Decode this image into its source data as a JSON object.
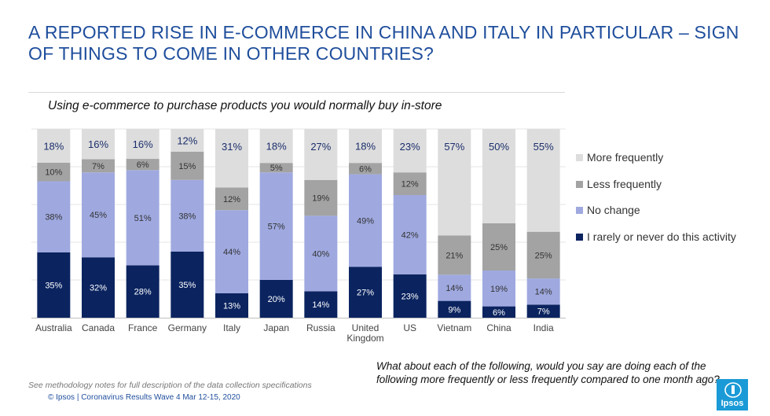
{
  "title": "A REPORTED RISE IN E-COMMERCE IN CHINA AND ITALY IN PARTICULAR – SIGN OF THINGS TO COME IN OTHER COUNTRIES?",
  "footer": {
    "note": "See methodology notes for full description of the data collection specifications",
    "source": "© Ipsos | Coronavirus Results Wave 4 Mar 12-15, 2020",
    "question": "What about each of the following, would you say are doing each of the following more frequently or less frequently compared to one month ago?",
    "logo_text": "Ipsos"
  },
  "colors": {
    "never": "#0b2460",
    "no_change": "#9fa9e0",
    "less": "#a3a3a3",
    "more": "#dddddd",
    "title": "#1f4e9c",
    "logo": "#1a9ad6"
  },
  "chart_data": {
    "type": "bar",
    "stacked": true,
    "title": "Using e-commerce to purchase products you would normally buy in-store",
    "categories": [
      "Australia",
      "Canada",
      "France",
      "Germany",
      "Italy",
      "Japan",
      "Russia",
      "United Kingdom",
      "US",
      "Vietnam",
      "China",
      "India"
    ],
    "category_lines": [
      [
        "Australia"
      ],
      [
        "Canada"
      ],
      [
        "France"
      ],
      [
        "Germany"
      ],
      [
        "Italy"
      ],
      [
        "Japan"
      ],
      [
        "Russia"
      ],
      [
        "United",
        "Kingdom"
      ],
      [
        "US"
      ],
      [
        "Vietnam"
      ],
      [
        "China"
      ],
      [
        "India"
      ]
    ],
    "series": [
      {
        "name": "I rarely or never do this activity",
        "key": "never",
        "values": [
          35,
          32,
          28,
          35,
          13,
          20,
          14,
          27,
          23,
          9,
          6,
          7
        ]
      },
      {
        "name": "No change",
        "key": "no_change",
        "values": [
          38,
          45,
          51,
          38,
          44,
          57,
          40,
          49,
          42,
          14,
          19,
          14
        ]
      },
      {
        "name": "Less frequently",
        "key": "less",
        "values": [
          10,
          7,
          6,
          15,
          12,
          5,
          19,
          6,
          12,
          21,
          25,
          25
        ]
      },
      {
        "name": "More frequently",
        "key": "more",
        "values": [
          18,
          16,
          16,
          12,
          31,
          18,
          27,
          18,
          23,
          57,
          50,
          55
        ]
      }
    ],
    "value_suffix": "%",
    "legend": [
      "More frequently",
      "Less frequently",
      "No change",
      "I rarely or never do this activity"
    ],
    "legend_position": "right",
    "grid": true
  }
}
